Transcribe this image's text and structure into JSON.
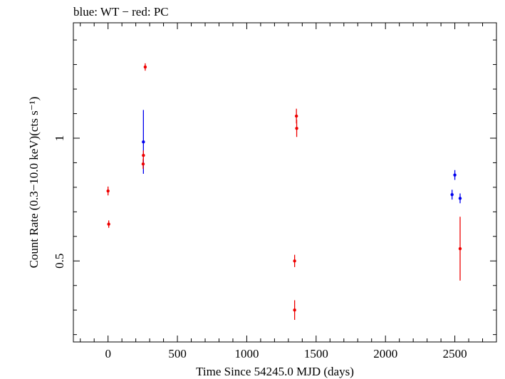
{
  "chart_data": {
    "type": "scatter",
    "title": "blue: WT − red: PC",
    "xlabel": "Time Since 54245.0 MJD (days)",
    "ylabel": "Count Rate (0.3−10.0 keV)(cts s⁻¹)",
    "xlim": [
      -250,
      2800
    ],
    "ylim": [
      0.17,
      1.47
    ],
    "xticks": [
      0,
      500,
      1000,
      1500,
      2000,
      2500
    ],
    "xtick_labels": [
      "0",
      "500",
      "1000",
      "1500",
      "2000",
      "2500"
    ],
    "yticks": [
      0.5,
      1
    ],
    "ytick_labels": [
      "0.5",
      "1"
    ],
    "grid": false,
    "series": [
      {
        "color": "#0000ee",
        "points": [
          {
            "x": 255,
            "y": 0.985,
            "err": 0.13
          },
          {
            "x": 2480,
            "y": 0.77,
            "err": 0.02
          },
          {
            "x": 2500,
            "y": 0.85,
            "err": 0.02
          },
          {
            "x": 2538,
            "y": 0.755,
            "err": 0.02
          }
        ]
      },
      {
        "color": "#ee0000",
        "points": [
          {
            "x": 0,
            "y": 0.785,
            "err": 0.018
          },
          {
            "x": 5,
            "y": 0.65,
            "err": 0.015
          },
          {
            "x": 253,
            "y": 0.895,
            "err": 0.02
          },
          {
            "x": 255,
            "y": 0.93,
            "err": 0.02
          },
          {
            "x": 268,
            "y": 1.29,
            "err": 0.015
          },
          {
            "x": 1345,
            "y": 0.5,
            "err": 0.025
          },
          {
            "x": 1345,
            "y": 0.3,
            "err": 0.04
          },
          {
            "x": 1358,
            "y": 1.09,
            "err": 0.03
          },
          {
            "x": 1360,
            "y": 1.04,
            "err": 0.035
          },
          {
            "x": 2538,
            "y": 0.55,
            "err": 0.13
          }
        ]
      }
    ]
  }
}
